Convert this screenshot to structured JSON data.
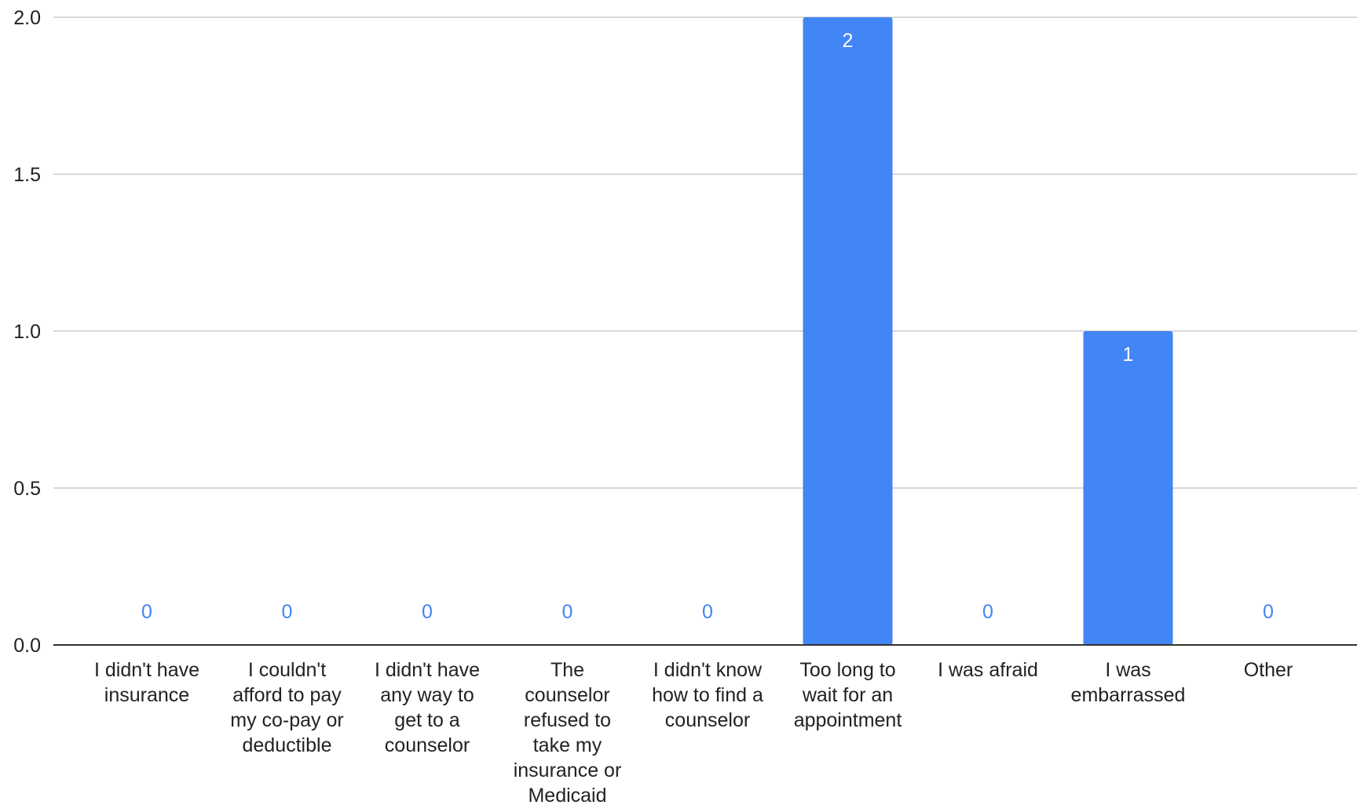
{
  "colors": {
    "bar": "#4285f4",
    "label_inside": "#ffffff",
    "label_zero": "#4285f4",
    "gridline": "#cccccc",
    "axis_line": "#333333",
    "text": "#222222"
  },
  "chart_data": {
    "type": "bar",
    "title": "",
    "xlabel": "",
    "ylabel": "",
    "ylim": [
      0,
      2
    ],
    "yticks": [
      "0.0",
      "0.5",
      "1.0",
      "1.5",
      "2.0"
    ],
    "grid": true,
    "legend": "none",
    "categories": [
      [
        "I didn't have",
        "insurance"
      ],
      [
        "I couldn't",
        "afford to pay",
        "my co-pay or",
        "deductible"
      ],
      [
        "I didn't have",
        "any way to",
        "get to a",
        "counselor"
      ],
      [
        "The",
        "counselor",
        "refused to",
        "take my",
        "insurance or",
        "Medicaid"
      ],
      [
        "I didn't know",
        "how to find a",
        "counselor"
      ],
      [
        "Too long to",
        "wait for an",
        "appointment"
      ],
      [
        "I was afraid"
      ],
      [
        "I was",
        "embarrassed"
      ],
      [
        "Other"
      ]
    ],
    "values": [
      0,
      0,
      0,
      0,
      0,
      2,
      0,
      1,
      0
    ],
    "data_labels": [
      "0",
      "0",
      "0",
      "0",
      "0",
      "2",
      "0",
      "1",
      "0"
    ]
  }
}
